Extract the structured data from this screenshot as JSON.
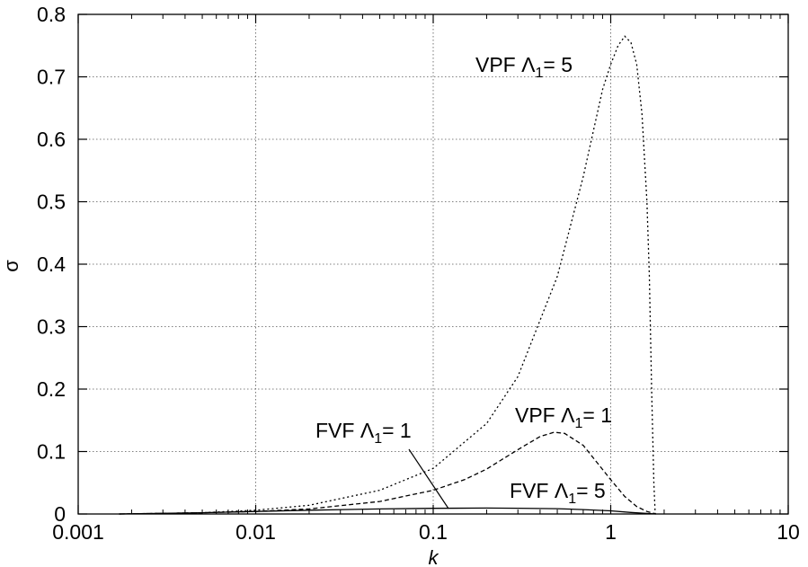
{
  "chart_data": {
    "type": "line",
    "title": "",
    "xlabel": "k",
    "ylabel": "σ",
    "xscale": "log",
    "xlim": [
      0.001,
      10
    ],
    "ylim": [
      0,
      0.8
    ],
    "grid": true,
    "x_ticks": [
      {
        "value": 0.001,
        "label": "0.001"
      },
      {
        "value": 0.01,
        "label": "0.01"
      },
      {
        "value": 0.1,
        "label": "0.1"
      },
      {
        "value": 1,
        "label": "1"
      },
      {
        "value": 10,
        "label": "10"
      }
    ],
    "y_ticks": [
      {
        "value": 0,
        "label": "0"
      },
      {
        "value": 0.1,
        "label": "0.1"
      },
      {
        "value": 0.2,
        "label": "0.2"
      },
      {
        "value": 0.3,
        "label": "0.3"
      },
      {
        "value": 0.4,
        "label": "0.4"
      },
      {
        "value": 0.5,
        "label": "0.5"
      },
      {
        "value": 0.6,
        "label": "0.6"
      },
      {
        "value": 0.7,
        "label": "0.7"
      },
      {
        "value": 0.8,
        "label": "0.8"
      }
    ],
    "series": [
      {
        "style": "dotted",
        "x": [
          0.0017,
          0.003,
          0.005,
          0.01,
          0.02,
          0.05,
          0.1,
          0.2,
          0.3,
          0.5,
          0.7,
          0.9,
          1.0,
          1.1,
          1.2,
          1.3,
          1.4,
          1.5,
          1.6,
          1.65,
          1.7,
          1.75,
          1.78
        ],
        "y": [
          0.0,
          0.001,
          0.002,
          0.006,
          0.014,
          0.038,
          0.073,
          0.145,
          0.22,
          0.38,
          0.54,
          0.68,
          0.72,
          0.75,
          0.765,
          0.755,
          0.72,
          0.64,
          0.5,
          0.38,
          0.2,
          0.05,
          0.0
        ]
      },
      {
        "style": "dashed",
        "x": [
          0.0017,
          0.003,
          0.005,
          0.01,
          0.02,
          0.05,
          0.1,
          0.15,
          0.2,
          0.3,
          0.4,
          0.48,
          0.55,
          0.7,
          0.85,
          1.0,
          1.2,
          1.4,
          1.6,
          1.8
        ],
        "y": [
          0.0,
          0.001,
          0.002,
          0.004,
          0.008,
          0.02,
          0.038,
          0.055,
          0.072,
          0.103,
          0.124,
          0.131,
          0.129,
          0.11,
          0.08,
          0.055,
          0.028,
          0.012,
          0.004,
          0.0
        ]
      },
      {
        "style": "solid",
        "x": [
          0.0017,
          0.003,
          0.005,
          0.01,
          0.02,
          0.05,
          0.1,
          0.2,
          0.3,
          0.5,
          0.7,
          1.0,
          1.3,
          1.6,
          1.8
        ],
        "y": [
          0.0,
          0.001,
          0.002,
          0.004,
          0.006,
          0.008,
          0.009,
          0.0095,
          0.0092,
          0.0085,
          0.007,
          0.005,
          0.0025,
          0.0008,
          0.0
        ]
      }
    ],
    "annotations": [
      {
        "text_main": "VPF Λ",
        "subscript": "1",
        "text_tail": "= 5"
      },
      {
        "text_main": "VPF Λ",
        "subscript": "1",
        "text_tail": "= 1"
      },
      {
        "text_main": "FVF Λ",
        "subscript": "1",
        "text_tail": "= 1"
      },
      {
        "text_main": "FVF Λ",
        "subscript": "1",
        "text_tail": "= 5"
      }
    ]
  }
}
